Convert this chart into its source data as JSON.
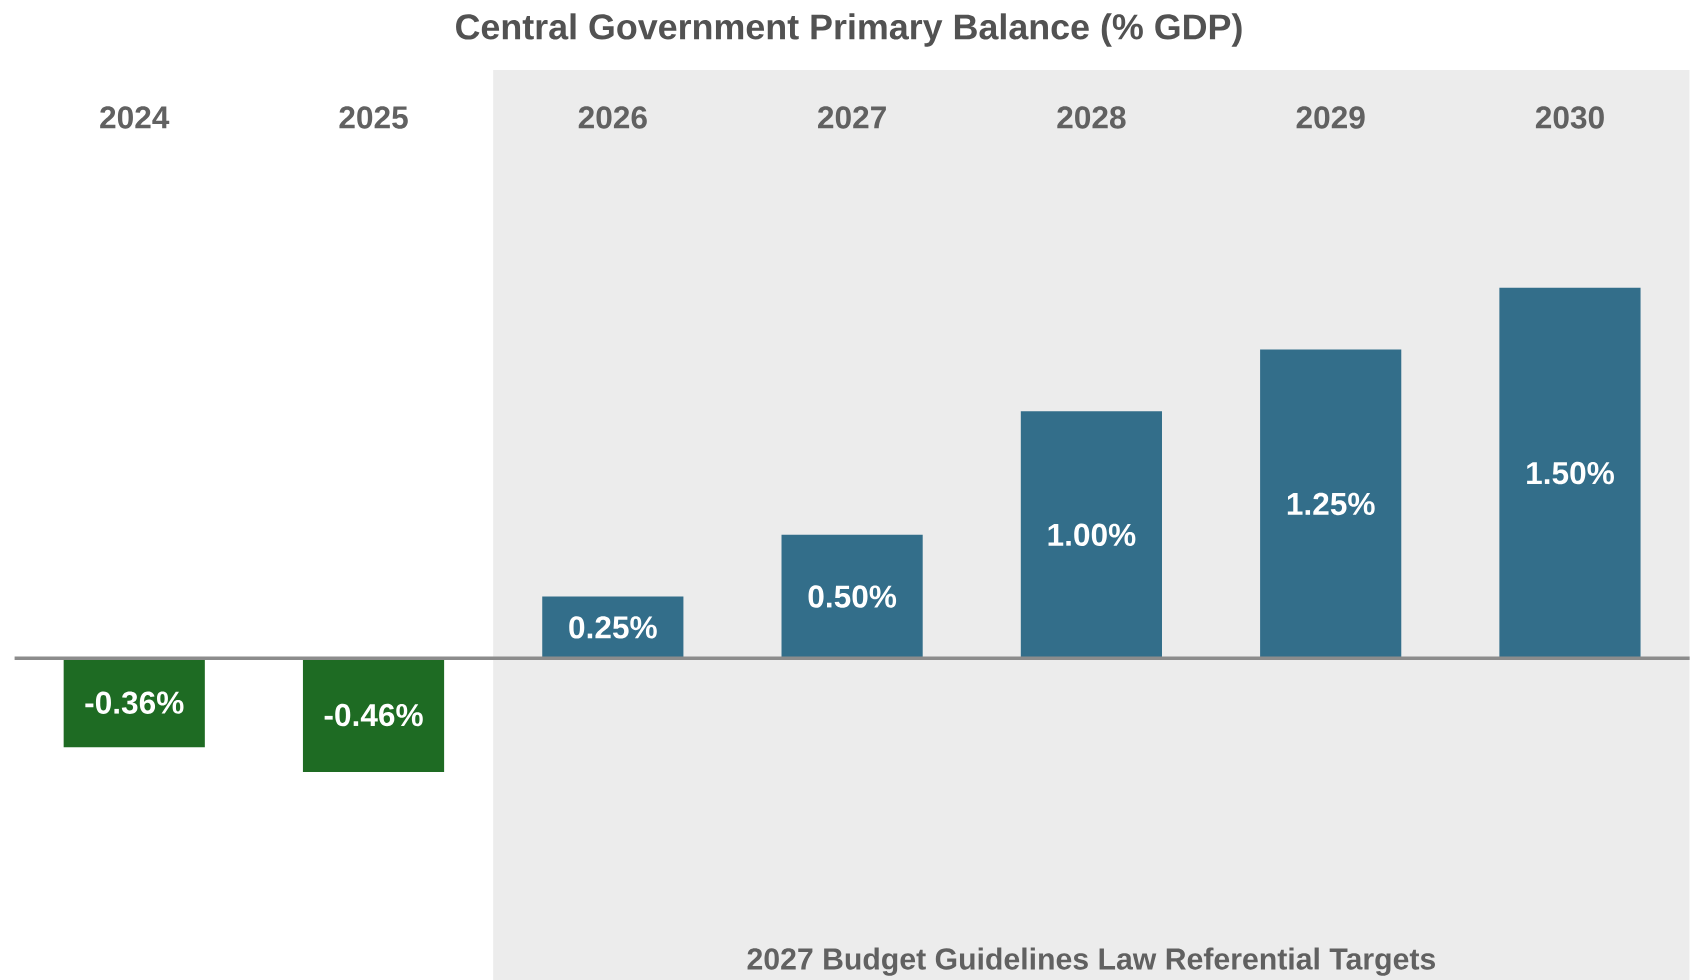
{
  "chart_data": {
    "type": "bar",
    "title": "Central Government Primary Balance (% GDP)",
    "categories": [
      "2024",
      "2025",
      "2026",
      "2027",
      "2028",
      "2029",
      "2030"
    ],
    "values": [
      -0.36,
      -0.46,
      0.25,
      0.5,
      1.0,
      1.25,
      1.5
    ],
    "colors": [
      "#1e6b23",
      "#1e6b23",
      "#336e8a",
      "#336e8a",
      "#336e8a",
      "#336e8a",
      "#336e8a"
    ],
    "value_labels": [
      "-0.36%",
      "-0.46%",
      "0.25%",
      "0.50%",
      "1.00%",
      "1.25%",
      "1.50%"
    ],
    "bands": [
      {
        "axis": "x",
        "from": "2026",
        "to": "2030",
        "label": "2027  Budget Guidelines Law Referential Targets",
        "color": "#ececec"
      }
    ]
  }
}
